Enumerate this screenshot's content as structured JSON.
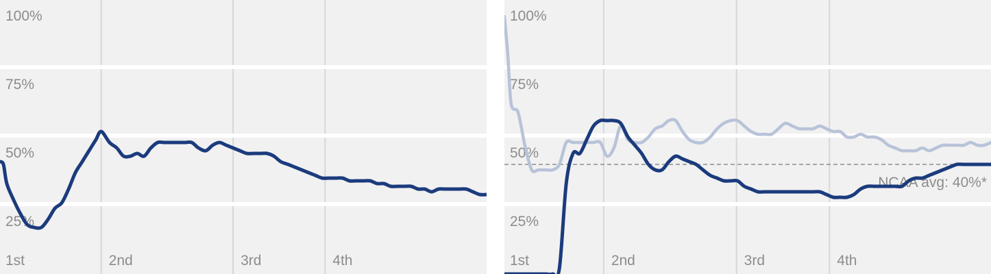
{
  "colors": {
    "band": "#f1f1f1",
    "separator": "#ffffff",
    "period_line": "#d7d7d7",
    "tick_text": "#8c8c8c",
    "primary_series": "#1b3b7d",
    "secondary_series": "#b8c3d9",
    "reference_line": "#8c8c8c"
  },
  "chart_data": [
    {
      "type": "line",
      "title": "",
      "xlabel": "",
      "ylabel": "",
      "xlim": [
        0,
        100
      ],
      "ylim": [
        0,
        100
      ],
      "x_ticks": [
        {
          "label": "1st",
          "x": 0
        },
        {
          "label": "2nd",
          "x": 20.8
        },
        {
          "label": "3rd",
          "x": 47.9
        },
        {
          "label": "4th",
          "x": 66.8
        }
      ],
      "y_ticks": [
        {
          "label": "100%",
          "value": 100
        },
        {
          "label": "75%",
          "value": 75
        },
        {
          "label": "50%",
          "value": 50
        },
        {
          "label": "25%",
          "value": 25
        }
      ],
      "grid": true,
      "series": [
        {
          "role": "primary",
          "color": "#1b3b7d",
          "points": [
            [
              0,
              41
            ],
            [
              0.7,
              40
            ],
            [
              1.4,
              33
            ],
            [
              2.8,
              27
            ],
            [
              4.2,
              22
            ],
            [
              5.6,
              18
            ],
            [
              7.0,
              17
            ],
            [
              8.5,
              17
            ],
            [
              9.9,
              20
            ],
            [
              11.3,
              24
            ],
            [
              12.7,
              26
            ],
            [
              14.1,
              31
            ],
            [
              15.5,
              37
            ],
            [
              16.9,
              41
            ],
            [
              18.3,
              45
            ],
            [
              19.7,
              49
            ],
            [
              20.8,
              52
            ],
            [
              22.5,
              48
            ],
            [
              24.0,
              46
            ],
            [
              25.4,
              43
            ],
            [
              26.8,
              43
            ],
            [
              28.2,
              44
            ],
            [
              29.6,
              43
            ],
            [
              31.0,
              46
            ],
            [
              32.4,
              48
            ],
            [
              33.8,
              48
            ],
            [
              35.2,
              48
            ],
            [
              36.6,
              48
            ],
            [
              38.0,
              48
            ],
            [
              39.4,
              48
            ],
            [
              40.8,
              46
            ],
            [
              42.3,
              45
            ],
            [
              43.7,
              47
            ],
            [
              45.1,
              48
            ],
            [
              46.5,
              47
            ],
            [
              47.9,
              46
            ],
            [
              49.3,
              45
            ],
            [
              50.7,
              44
            ],
            [
              52.1,
              44
            ],
            [
              53.5,
              44
            ],
            [
              54.9,
              44
            ],
            [
              56.3,
              43
            ],
            [
              57.7,
              41
            ],
            [
              59.2,
              40
            ],
            [
              60.6,
              39
            ],
            [
              62.0,
              38
            ],
            [
              63.4,
              37
            ],
            [
              64.8,
              36
            ],
            [
              66.2,
              35
            ],
            [
              67.6,
              35
            ],
            [
              69.0,
              35
            ],
            [
              70.4,
              35
            ],
            [
              71.8,
              34
            ],
            [
              73.2,
              34
            ],
            [
              74.6,
              34
            ],
            [
              76.1,
              34
            ],
            [
              77.5,
              33
            ],
            [
              78.9,
              33
            ],
            [
              80.3,
              32
            ],
            [
              81.7,
              32
            ],
            [
              83.1,
              32
            ],
            [
              84.5,
              32
            ],
            [
              85.9,
              31
            ],
            [
              87.3,
              31
            ],
            [
              88.7,
              30
            ],
            [
              90.1,
              31
            ],
            [
              91.5,
              31
            ],
            [
              93.0,
              31
            ],
            [
              94.4,
              31
            ],
            [
              95.8,
              31
            ],
            [
              97.2,
              30
            ],
            [
              98.6,
              29
            ],
            [
              100,
              29
            ]
          ]
        }
      ],
      "reference_lines": []
    },
    {
      "type": "line",
      "title": "",
      "xlabel": "",
      "ylabel": "",
      "xlim": [
        0,
        100
      ],
      "ylim": [
        0,
        100
      ],
      "x_ticks": [
        {
          "label": "1st",
          "x": 0
        },
        {
          "label": "2nd",
          "x": 20.4
        },
        {
          "label": "3rd",
          "x": 47.7
        },
        {
          "label": "4th",
          "x": 66.8
        }
      ],
      "y_ticks": [
        {
          "label": "100%",
          "value": 100
        },
        {
          "label": "75%",
          "value": 75
        },
        {
          "label": "50%",
          "value": 50
        },
        {
          "label": "25%",
          "value": 25
        }
      ],
      "grid": true,
      "series": [
        {
          "role": "secondary",
          "color": "#b8c3d9",
          "points": [
            [
              0,
              94
            ],
            [
              0.7,
              80
            ],
            [
              1.4,
              62
            ],
            [
              2.8,
              59
            ],
            [
              4.2,
              47
            ],
            [
              5.6,
              38
            ],
            [
              7.0,
              38
            ],
            [
              8.5,
              38
            ],
            [
              9.9,
              38
            ],
            [
              11.3,
              40
            ],
            [
              12.7,
              48
            ],
            [
              14.1,
              48
            ],
            [
              15.5,
              48
            ],
            [
              16.9,
              48
            ],
            [
              18.3,
              48
            ],
            [
              19.7,
              48
            ],
            [
              21.1,
              43
            ],
            [
              22.5,
              46
            ],
            [
              23.9,
              54
            ],
            [
              25.4,
              49
            ],
            [
              26.8,
              48
            ],
            [
              28.2,
              48
            ],
            [
              29.6,
              50
            ],
            [
              31.0,
              53
            ],
            [
              32.4,
              54
            ],
            [
              33.8,
              56
            ],
            [
              35.2,
              56
            ],
            [
              36.6,
              52
            ],
            [
              38.0,
              49
            ],
            [
              39.4,
              48
            ],
            [
              40.8,
              48
            ],
            [
              42.3,
              50
            ],
            [
              43.7,
              53
            ],
            [
              45.1,
              55
            ],
            [
              46.5,
              56
            ],
            [
              47.9,
              56
            ],
            [
              49.3,
              54
            ],
            [
              50.7,
              52
            ],
            [
              52.1,
              51
            ],
            [
              53.5,
              51
            ],
            [
              54.9,
              51
            ],
            [
              56.3,
              53
            ],
            [
              57.7,
              55
            ],
            [
              59.2,
              54
            ],
            [
              60.6,
              53
            ],
            [
              62.0,
              53
            ],
            [
              63.4,
              53
            ],
            [
              64.8,
              54
            ],
            [
              66.2,
              53
            ],
            [
              67.6,
              52
            ],
            [
              69.0,
              52
            ],
            [
              70.4,
              50
            ],
            [
              71.8,
              50
            ],
            [
              73.2,
              51
            ],
            [
              74.6,
              50
            ],
            [
              76.1,
              50
            ],
            [
              77.5,
              49
            ],
            [
              78.9,
              47
            ],
            [
              80.3,
              46
            ],
            [
              81.7,
              45
            ],
            [
              83.1,
              45
            ],
            [
              84.5,
              45
            ],
            [
              85.9,
              46
            ],
            [
              87.3,
              45
            ],
            [
              88.7,
              46
            ],
            [
              90.1,
              47
            ],
            [
              91.5,
              47
            ],
            [
              93.0,
              47
            ],
            [
              94.4,
              47
            ],
            [
              95.8,
              48
            ],
            [
              97.2,
              47
            ],
            [
              98.6,
              47
            ],
            [
              100,
              48
            ]
          ]
        },
        {
          "role": "primary",
          "color": "#1b3b7d",
          "points": [
            [
              0,
              0
            ],
            [
              1.4,
              0
            ],
            [
              2.8,
              0
            ],
            [
              4.2,
              0
            ],
            [
              5.6,
              0
            ],
            [
              7.0,
              0
            ],
            [
              8.5,
              0
            ],
            [
              9.9,
              0
            ],
            [
              11.3,
              2
            ],
            [
              12.7,
              33
            ],
            [
              14.1,
              44
            ],
            [
              15.5,
              44
            ],
            [
              16.9,
              49
            ],
            [
              18.3,
              54
            ],
            [
              19.7,
              56
            ],
            [
              21.1,
              56
            ],
            [
              22.5,
              56
            ],
            [
              23.9,
              55
            ],
            [
              25.4,
              50
            ],
            [
              26.8,
              47
            ],
            [
              28.2,
              44
            ],
            [
              29.6,
              40
            ],
            [
              31.0,
              38
            ],
            [
              32.4,
              38
            ],
            [
              33.8,
              41
            ],
            [
              35.2,
              43
            ],
            [
              36.6,
              42
            ],
            [
              38.0,
              41
            ],
            [
              39.4,
              40
            ],
            [
              40.8,
              38
            ],
            [
              42.3,
              36
            ],
            [
              43.7,
              35
            ],
            [
              45.1,
              34
            ],
            [
              46.5,
              34
            ],
            [
              47.9,
              34
            ],
            [
              49.3,
              32
            ],
            [
              50.7,
              31
            ],
            [
              52.1,
              30
            ],
            [
              53.5,
              30
            ],
            [
              54.9,
              30
            ],
            [
              56.3,
              30
            ],
            [
              57.7,
              30
            ],
            [
              59.2,
              30
            ],
            [
              60.6,
              30
            ],
            [
              62.0,
              30
            ],
            [
              63.4,
              30
            ],
            [
              64.8,
              30
            ],
            [
              66.2,
              29
            ],
            [
              67.6,
              28
            ],
            [
              69.0,
              28
            ],
            [
              70.4,
              28
            ],
            [
              71.8,
              29
            ],
            [
              73.2,
              31
            ],
            [
              74.6,
              32
            ],
            [
              76.1,
              32
            ],
            [
              77.5,
              32
            ],
            [
              78.9,
              32
            ],
            [
              80.3,
              32
            ],
            [
              81.7,
              32
            ],
            [
              83.1,
              34
            ],
            [
              84.5,
              35
            ],
            [
              85.9,
              35
            ],
            [
              87.3,
              36
            ],
            [
              88.7,
              37
            ],
            [
              90.1,
              38
            ],
            [
              91.5,
              39
            ],
            [
              93.0,
              40
            ],
            [
              94.4,
              40
            ],
            [
              95.8,
              40
            ],
            [
              97.2,
              40
            ],
            [
              98.6,
              40
            ],
            [
              100,
              40
            ]
          ]
        }
      ],
      "reference_lines": [
        {
          "value": 40,
          "label": "NCAA avg: 40%*",
          "style": "dashed"
        }
      ]
    }
  ]
}
